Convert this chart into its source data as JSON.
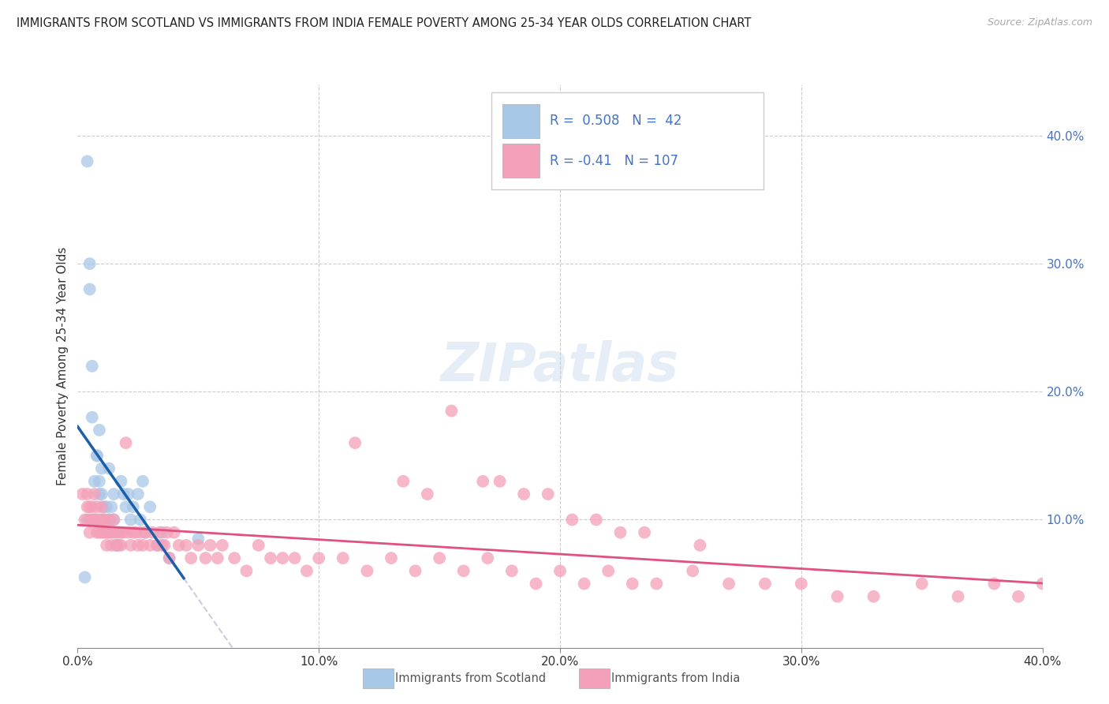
{
  "title": "IMMIGRANTS FROM SCOTLAND VS IMMIGRANTS FROM INDIA FEMALE POVERTY AMONG 25-34 YEAR OLDS CORRELATION CHART",
  "source": "Source: ZipAtlas.com",
  "ylabel": "Female Poverty Among 25-34 Year Olds",
  "xlim": [
    0.0,
    0.4
  ],
  "ylim": [
    0.0,
    0.44
  ],
  "xticks": [
    0.0,
    0.1,
    0.2,
    0.3,
    0.4
  ],
  "yticks": [
    0.1,
    0.2,
    0.3,
    0.4
  ],
  "ytick_labels_right": [
    "10.0%",
    "20.0%",
    "30.0%",
    "40.0%"
  ],
  "xtick_labels": [
    "0.0%",
    "10.0%",
    "20.0%",
    "30.0%",
    "40.0%"
  ],
  "scotland_R": 0.508,
  "scotland_N": 42,
  "india_R": -0.41,
  "india_N": 107,
  "scotland_color": "#a8c8e8",
  "india_color": "#f4a0b8",
  "scotland_line_color": "#1a5fa8",
  "india_line_color": "#e05080",
  "background_color": "#ffffff",
  "grid_color": "#cccccc",
  "scotland_x": [
    0.003,
    0.004,
    0.004,
    0.005,
    0.005,
    0.006,
    0.006,
    0.007,
    0.007,
    0.008,
    0.008,
    0.009,
    0.009,
    0.009,
    0.01,
    0.01,
    0.011,
    0.011,
    0.012,
    0.012,
    0.013,
    0.013,
    0.014,
    0.015,
    0.015,
    0.016,
    0.017,
    0.018,
    0.019,
    0.02,
    0.021,
    0.022,
    0.023,
    0.025,
    0.026,
    0.027,
    0.028,
    0.03,
    0.033,
    0.035,
    0.038,
    0.05
  ],
  "scotland_y": [
    0.055,
    0.38,
    0.1,
    0.28,
    0.3,
    0.18,
    0.22,
    0.1,
    0.13,
    0.15,
    0.15,
    0.12,
    0.13,
    0.17,
    0.12,
    0.14,
    0.1,
    0.11,
    0.09,
    0.11,
    0.14,
    0.1,
    0.11,
    0.12,
    0.1,
    0.08,
    0.09,
    0.13,
    0.12,
    0.11,
    0.12,
    0.1,
    0.11,
    0.12,
    0.1,
    0.13,
    0.09,
    0.11,
    0.08,
    0.09,
    0.07,
    0.085
  ],
  "india_x": [
    0.002,
    0.003,
    0.004,
    0.004,
    0.005,
    0.005,
    0.005,
    0.006,
    0.006,
    0.007,
    0.007,
    0.008,
    0.008,
    0.008,
    0.009,
    0.009,
    0.01,
    0.01,
    0.01,
    0.011,
    0.011,
    0.012,
    0.012,
    0.013,
    0.013,
    0.014,
    0.014,
    0.015,
    0.015,
    0.016,
    0.016,
    0.017,
    0.018,
    0.018,
    0.019,
    0.02,
    0.021,
    0.022,
    0.023,
    0.024,
    0.025,
    0.026,
    0.027,
    0.028,
    0.03,
    0.031,
    0.033,
    0.034,
    0.035,
    0.036,
    0.037,
    0.038,
    0.04,
    0.042,
    0.045,
    0.047,
    0.05,
    0.053,
    0.055,
    0.058,
    0.06,
    0.065,
    0.07,
    0.075,
    0.08,
    0.085,
    0.09,
    0.095,
    0.1,
    0.11,
    0.12,
    0.13,
    0.14,
    0.15,
    0.16,
    0.17,
    0.18,
    0.19,
    0.2,
    0.21,
    0.22,
    0.23,
    0.24,
    0.255,
    0.27,
    0.285,
    0.3,
    0.315,
    0.33,
    0.35,
    0.365,
    0.38,
    0.39,
    0.4,
    0.155,
    0.175,
    0.195,
    0.215,
    0.235,
    0.258,
    0.115,
    0.135,
    0.145,
    0.168,
    0.185,
    0.205,
    0.225
  ],
  "india_y": [
    0.12,
    0.1,
    0.11,
    0.12,
    0.11,
    0.1,
    0.09,
    0.1,
    0.11,
    0.1,
    0.12,
    0.09,
    0.1,
    0.11,
    0.1,
    0.09,
    0.1,
    0.09,
    0.11,
    0.09,
    0.1,
    0.09,
    0.08,
    0.09,
    0.1,
    0.08,
    0.09,
    0.1,
    0.09,
    0.08,
    0.09,
    0.08,
    0.09,
    0.08,
    0.09,
    0.16,
    0.09,
    0.08,
    0.09,
    0.09,
    0.08,
    0.09,
    0.08,
    0.09,
    0.08,
    0.09,
    0.08,
    0.09,
    0.08,
    0.08,
    0.09,
    0.07,
    0.09,
    0.08,
    0.08,
    0.07,
    0.08,
    0.07,
    0.08,
    0.07,
    0.08,
    0.07,
    0.06,
    0.08,
    0.07,
    0.07,
    0.07,
    0.06,
    0.07,
    0.07,
    0.06,
    0.07,
    0.06,
    0.07,
    0.06,
    0.07,
    0.06,
    0.05,
    0.06,
    0.05,
    0.06,
    0.05,
    0.05,
    0.06,
    0.05,
    0.05,
    0.05,
    0.04,
    0.04,
    0.05,
    0.04,
    0.05,
    0.04,
    0.05,
    0.185,
    0.13,
    0.12,
    0.1,
    0.09,
    0.08,
    0.16,
    0.13,
    0.12,
    0.13,
    0.12,
    0.1,
    0.09
  ]
}
